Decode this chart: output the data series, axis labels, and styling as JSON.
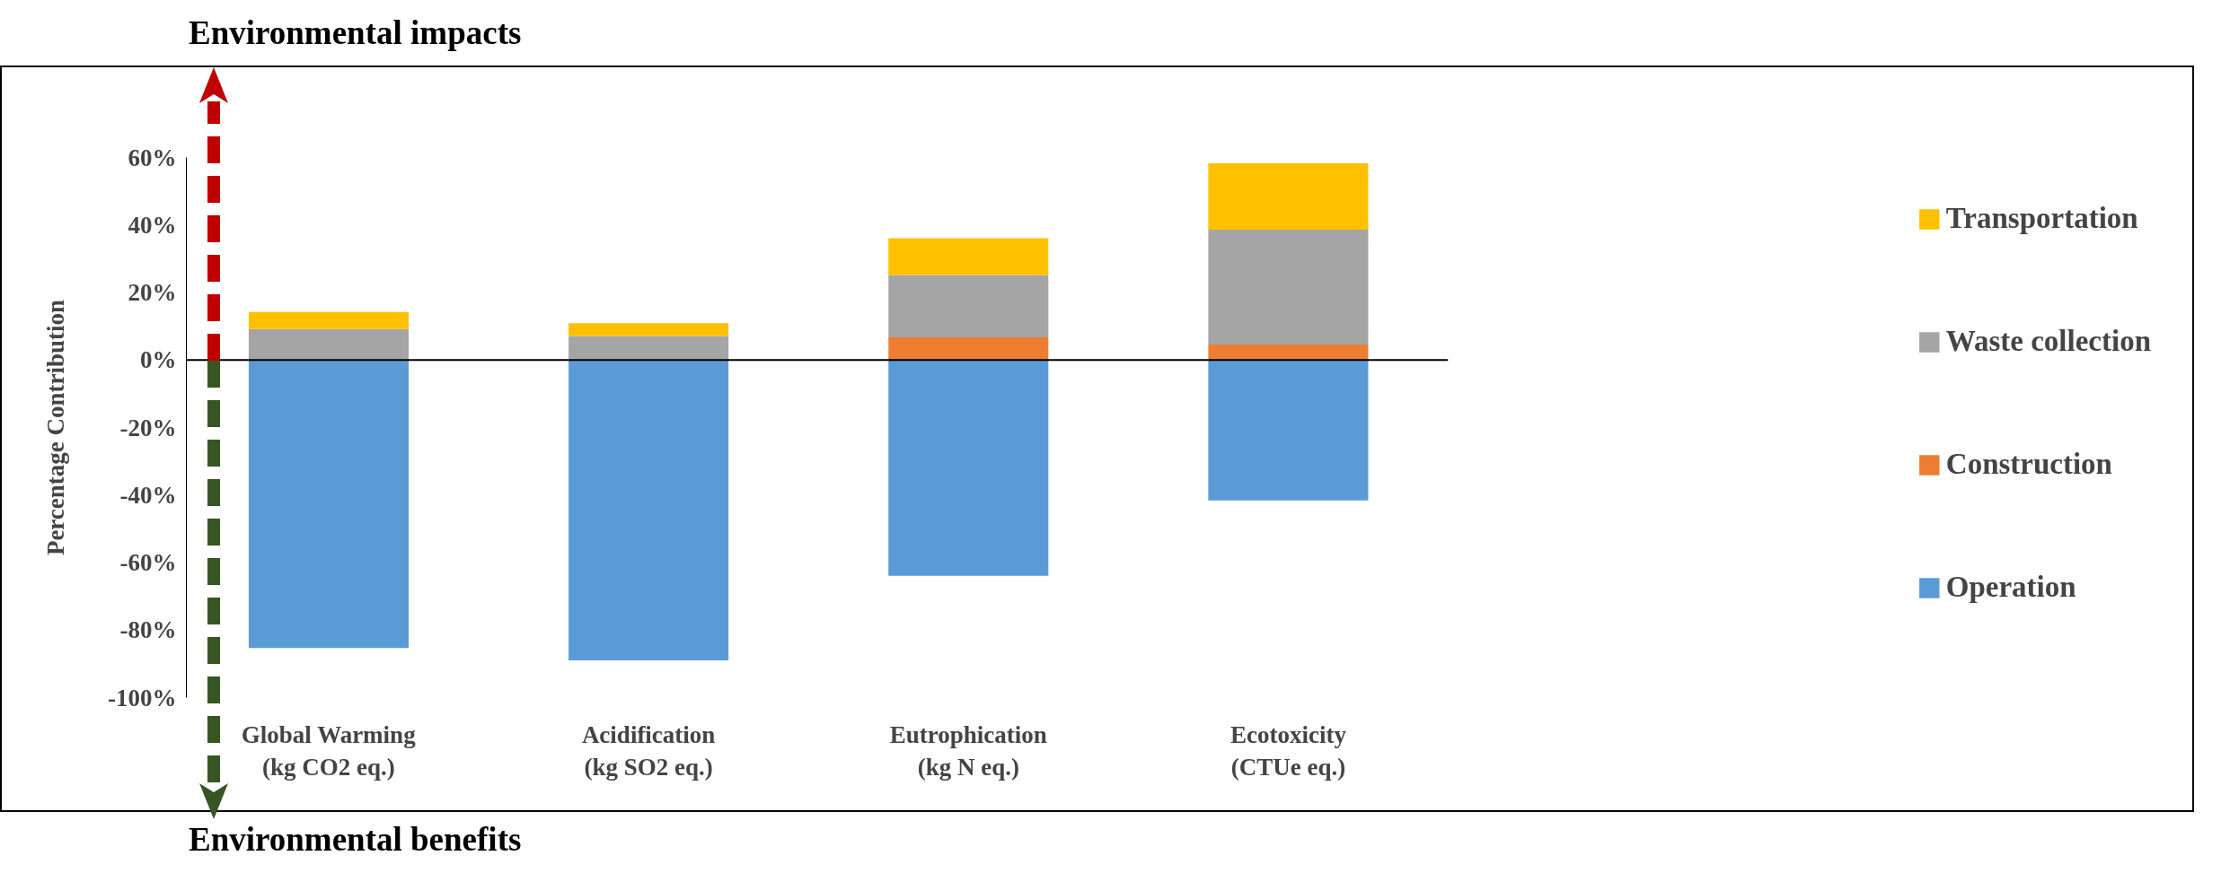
{
  "chart_data": {
    "type": "bar",
    "stacked": true,
    "title": "Environmental impacts",
    "ylabel": "Percentage Contribution",
    "annotations": [
      "Environmental benefits"
    ],
    "categories": [
      "Global Warming\n(kg CO2 eq.)",
      "Acidification\n(kg SO2 eq.)",
      "Eutrophication\n(kg N eq.)",
      "Ecotoxicity\n(CTUe eq.)"
    ],
    "series": [
      {
        "name": "Operation",
        "color": "#5b9bd5",
        "values": [
          -85.3,
          -89,
          -63.9,
          -41.6
        ]
      },
      {
        "name": "Construction",
        "color": "#ed7d31",
        "values": [
          0,
          0,
          6.7,
          4.6
        ]
      },
      {
        "name": "Waste collection",
        "color": "#a5a5a5",
        "values": [
          9.2,
          7.1,
          18.5,
          34
        ]
      },
      {
        "name": "Transportation",
        "color": "#ffc000",
        "values": [
          5,
          3.8,
          10.9,
          19.7
        ]
      }
    ],
    "ylim": [
      -100,
      60
    ],
    "yticks": [
      {
        "value": -100,
        "label": "-100%"
      },
      {
        "value": -80,
        "label": "-80%"
      },
      {
        "value": -60,
        "label": "-60%"
      },
      {
        "value": -40,
        "label": "-40%"
      },
      {
        "value": -20,
        "label": "-20%"
      },
      {
        "value": 0,
        "label": "0%"
      },
      {
        "value": 20,
        "label": "20%"
      },
      {
        "value": 40,
        "label": "40%"
      },
      {
        "value": 60,
        "label": "60%"
      }
    ],
    "ref_lines": [
      {
        "axis": "y",
        "value": 0,
        "label": null,
        "color": "#000000"
      }
    ],
    "grid": false,
    "legend": "right"
  }
}
